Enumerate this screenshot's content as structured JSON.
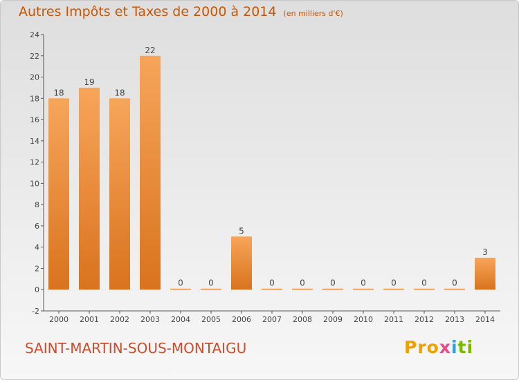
{
  "title": {
    "main": "Autres Impôts et Taxes de 2000 à 2014",
    "unit": "(en milliers d'€)"
  },
  "commune": "SAINT-MARTIN-SOUS-MONTAIGU",
  "brand": {
    "parts": [
      "Pro",
      "x",
      "i",
      "ti"
    ],
    "text": "Proxiti"
  },
  "colors": {
    "title": "#cc5500",
    "commune": "#cc4c2c",
    "bar_light": "#f7a55a",
    "bar_dark": "#d9731e",
    "axis": "#555555"
  },
  "chart_data": {
    "type": "bar",
    "categories": [
      "2000",
      "2001",
      "2002",
      "2003",
      "2004",
      "2005",
      "2006",
      "2007",
      "2008",
      "2009",
      "2010",
      "2011",
      "2012",
      "2013",
      "2014"
    ],
    "values": [
      18,
      19,
      18,
      22,
      0,
      0,
      5,
      0,
      0,
      0,
      0,
      0,
      0,
      0,
      3
    ],
    "title": "Autres Impôts et Taxes de 2000 à 2014",
    "subtitle": "(en milliers d'€)",
    "xlabel": "",
    "ylabel": "",
    "ylim": [
      -2,
      24
    ],
    "yticks": [
      -2,
      0,
      2,
      4,
      6,
      8,
      10,
      12,
      14,
      16,
      18,
      20,
      22,
      24
    ],
    "grid": false,
    "legend": "none"
  }
}
